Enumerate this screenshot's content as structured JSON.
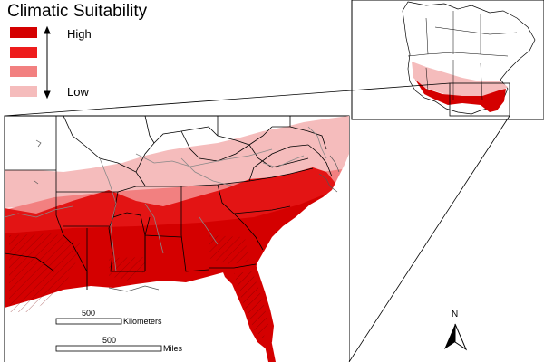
{
  "legend": {
    "title": "Climatic Suitability",
    "high_label": "High",
    "low_label": "Low",
    "classes": [
      {
        "color": "#d40000"
      },
      {
        "color": "#ee1c1c"
      },
      {
        "color": "#f28080"
      },
      {
        "color": "#f5bcbc"
      }
    ]
  },
  "scale": {
    "km_value": "500",
    "km_unit": "Kilometers",
    "mi_value": "500",
    "mi_unit": "Miles"
  },
  "north_label": "N",
  "colors": {
    "high": "#d40000",
    "mid_high": "#ee1c1c",
    "mid_low": "#f28080",
    "low": "#f5bcbc",
    "background": "#ffffff"
  }
}
